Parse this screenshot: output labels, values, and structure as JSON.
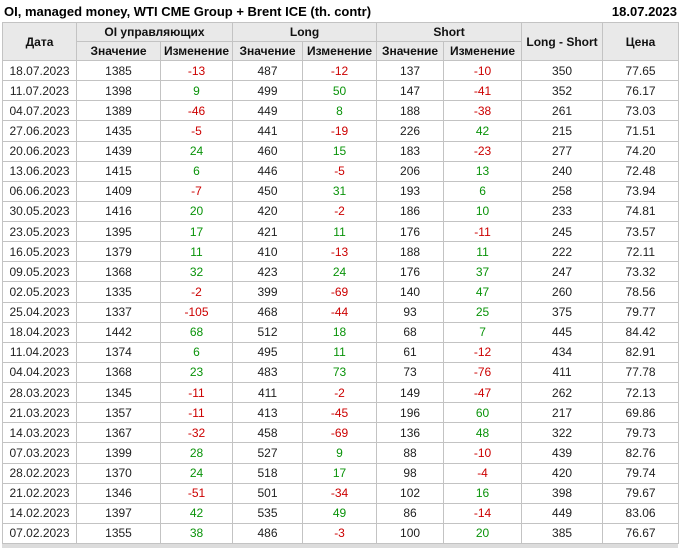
{
  "header": {
    "title": "OI, managed money, WTI CME Group + Brent ICE (th. contr)",
    "report_date": "18.07.2023"
  },
  "labels": {
    "date_col": "Дата",
    "oi_group": "OI управляющих",
    "long_group": "Long",
    "short_group": "Short",
    "value_sub": "Значение",
    "change_sub": "Изменение",
    "long_short_col": "Long - Short",
    "price_col": "Цена"
  },
  "colors": {
    "positive": "#0a930a",
    "negative": "#cc0000",
    "header_bg": "#e9e9e9",
    "grid_border": "#c3c3c3"
  },
  "chart_data": {
    "type": "table",
    "title": "OI, managed money, WTI CME Group + Brent ICE (th. contr)",
    "report_date": "18.07.2023",
    "columns": [
      "Дата",
      "OI управляющих Значение",
      "OI управляющих Изменение",
      "Long Значение",
      "Long Изменение",
      "Short Значение",
      "Short Изменение",
      "Long - Short",
      "Цена"
    ],
    "rows": [
      [
        "18.07.2023",
        1385,
        -13,
        487,
        -12,
        137,
        -10,
        350,
        "77.65"
      ],
      [
        "11.07.2023",
        1398,
        9,
        499,
        50,
        147,
        -41,
        352,
        "76.17"
      ],
      [
        "04.07.2023",
        1389,
        -46,
        449,
        8,
        188,
        -38,
        261,
        "73.03"
      ],
      [
        "27.06.2023",
        1435,
        -5,
        441,
        -19,
        226,
        42,
        215,
        "71.51"
      ],
      [
        "20.06.2023",
        1439,
        24,
        460,
        15,
        183,
        -23,
        277,
        "74.20"
      ],
      [
        "13.06.2023",
        1415,
        6,
        446,
        -5,
        206,
        13,
        240,
        "72.48"
      ],
      [
        "06.06.2023",
        1409,
        -7,
        450,
        31,
        193,
        6,
        258,
        "73.94"
      ],
      [
        "30.05.2023",
        1416,
        20,
        420,
        -2,
        186,
        10,
        233,
        "74.81"
      ],
      [
        "23.05.2023",
        1395,
        17,
        421,
        11,
        176,
        -11,
        245,
        "73.57"
      ],
      [
        "16.05.2023",
        1379,
        11,
        410,
        -13,
        188,
        11,
        222,
        "72.11"
      ],
      [
        "09.05.2023",
        1368,
        32,
        423,
        24,
        176,
        37,
        247,
        "73.32"
      ],
      [
        "02.05.2023",
        1335,
        -2,
        399,
        -69,
        140,
        47,
        260,
        "78.56"
      ],
      [
        "25.04.2023",
        1337,
        -105,
        468,
        -44,
        93,
        25,
        375,
        "79.77"
      ],
      [
        "18.04.2023",
        1442,
        68,
        512,
        18,
        68,
        7,
        445,
        "84.42"
      ],
      [
        "11.04.2023",
        1374,
        6,
        495,
        11,
        61,
        -12,
        434,
        "82.91"
      ],
      [
        "04.04.2023",
        1368,
        23,
        483,
        73,
        73,
        -76,
        411,
        "77.78"
      ],
      [
        "28.03.2023",
        1345,
        -11,
        411,
        -2,
        149,
        -47,
        262,
        "72.13"
      ],
      [
        "21.03.2023",
        1357,
        -11,
        413,
        -45,
        196,
        60,
        217,
        "69.86"
      ],
      [
        "14.03.2023",
        1367,
        -32,
        458,
        -69,
        136,
        48,
        322,
        "79.73"
      ],
      [
        "07.03.2023",
        1399,
        28,
        527,
        9,
        88,
        -10,
        439,
        "82.76"
      ],
      [
        "28.02.2023",
        1370,
        24,
        518,
        17,
        98,
        -4,
        420,
        "79.74"
      ],
      [
        "21.02.2023",
        1346,
        -51,
        501,
        -34,
        102,
        16,
        398,
        "79.67"
      ],
      [
        "14.02.2023",
        1397,
        42,
        535,
        49,
        86,
        -14,
        449,
        "83.06"
      ],
      [
        "07.02.2023",
        1355,
        38,
        486,
        -3,
        100,
        20,
        385,
        "76.67"
      ]
    ]
  }
}
